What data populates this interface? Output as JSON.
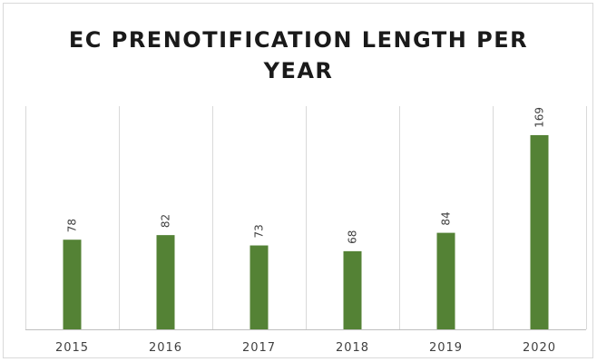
{
  "chart_data": {
    "type": "bar",
    "title_lines": [
      "EC PRENOTIFICATION LENGTH PER",
      "YEAR"
    ],
    "categories": [
      "2015",
      "2016",
      "2017",
      "2018",
      "2019",
      "2020"
    ],
    "values": [
      78,
      82,
      73,
      68,
      84,
      169
    ],
    "data_labels": [
      "78",
      "82",
      "73",
      "68",
      "84",
      "169"
    ],
    "ylim": [
      0,
      180
    ],
    "grid": "vertical",
    "bar_color": "#548235"
  }
}
